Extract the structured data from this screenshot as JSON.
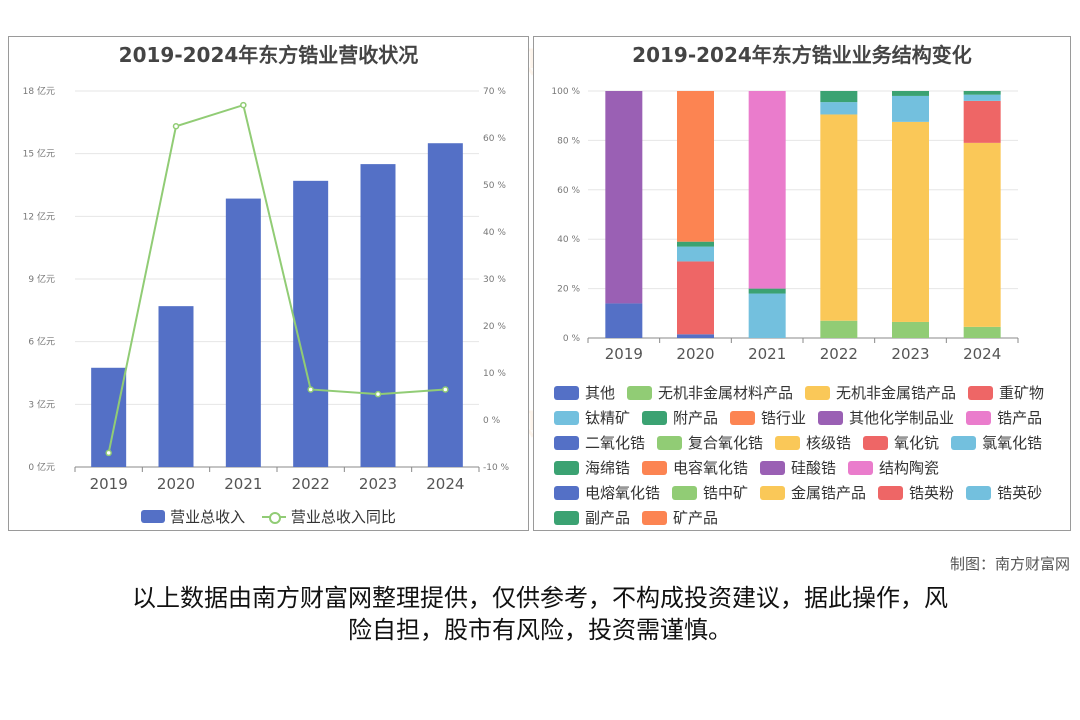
{
  "left_chart_title": "2019-2024年东方锆业营收状况",
  "right_chart_title": "2019-2024年东方锆业业务结构变化",
  "credit": "制图：南方财富网",
  "disclaimer_line1": "以上数据由南方财富网整理提供，仅供参考，不构成投资建议，据此操作，风",
  "disclaimer_line2": "险自担，股市有风险，投资需谨慎。",
  "watermark": "南方财富网",
  "chart_data": [
    {
      "type": "bar",
      "title": "2019-2024年东方锆业营收状况",
      "categories": [
        "2019",
        "2020",
        "2021",
        "2022",
        "2023",
        "2024"
      ],
      "yaxis_left": {
        "ticks": [
          "0 亿元",
          "3 亿元",
          "6 亿元",
          "9 亿元",
          "12 亿元",
          "15 亿元",
          "18 亿元"
        ],
        "range": [
          0,
          18
        ]
      },
      "yaxis_right": {
        "ticks": [
          "-10 %",
          "0 %",
          "10 %",
          "20 %",
          "30 %",
          "40 %",
          "50 %",
          "60 %",
          "70 %"
        ],
        "range": [
          -10,
          70
        ]
      },
      "series": [
        {
          "name": "营业总收入",
          "type": "bar",
          "color": "#5470c6",
          "values": [
            4.75,
            7.7,
            12.85,
            13.7,
            14.5,
            15.5
          ]
        },
        {
          "name": "营业总收入同比",
          "type": "line",
          "color": "#91cc75",
          "values": [
            -7,
            62.5,
            67,
            6.5,
            5.5,
            6.5
          ]
        }
      ],
      "legend_position": "bottom"
    },
    {
      "type": "bar",
      "stacked": true,
      "title": "2019-2024年东方锆业业务结构变化",
      "categories": [
        "2019",
        "2020",
        "2021",
        "2022",
        "2023",
        "2024"
      ],
      "yaxis": {
        "ticks": [
          "0 %",
          "20 %",
          "40 %",
          "60 %",
          "80 %",
          "100 %"
        ],
        "range": [
          0,
          100
        ]
      },
      "legend": [
        {
          "name": "其他",
          "color": "#5470c6"
        },
        {
          "name": "无机非金属材料产品",
          "color": "#91cc75"
        },
        {
          "name": "无机非金属锆产品",
          "color": "#fac858"
        },
        {
          "name": "重矿物",
          "color": "#ee6666"
        },
        {
          "name": "钛精矿",
          "color": "#73c0de"
        },
        {
          "name": "附产品",
          "color": "#3ba272"
        },
        {
          "name": "锆行业",
          "color": "#fc8452"
        },
        {
          "name": "其他化学制品业",
          "color": "#9a60b4"
        },
        {
          "name": "锆产品",
          "color": "#ea7ccc"
        },
        {
          "name": "二氧化锆",
          "color": "#5470c6"
        },
        {
          "name": "复合氧化锆",
          "color": "#91cc75"
        },
        {
          "name": "核级锆",
          "color": "#fac858"
        },
        {
          "name": "氧化钪",
          "color": "#ee6666"
        },
        {
          "name": "氯氧化锆",
          "color": "#73c0de"
        },
        {
          "name": "海绵锆",
          "color": "#3ba272"
        },
        {
          "name": "电容氧化锆",
          "color": "#fc8452"
        },
        {
          "name": "硅酸锆",
          "color": "#9a60b4"
        },
        {
          "name": "结构陶瓷",
          "color": "#ea7ccc"
        },
        {
          "name": "电熔氧化锆",
          "color": "#5470c6"
        },
        {
          "name": "锆中矿",
          "color": "#91cc75"
        },
        {
          "name": "金属锆产品",
          "color": "#fac858"
        },
        {
          "name": "锆英粉",
          "color": "#ee6666"
        },
        {
          "name": "锆英砂",
          "color": "#73c0de"
        },
        {
          "name": "副产品",
          "color": "#3ba272"
        },
        {
          "name": "矿产品",
          "color": "#fc8452"
        }
      ],
      "stacks": [
        [
          {
            "name": "其他",
            "value": 14,
            "color": "#5470c6"
          },
          {
            "name": "其他化学制品业",
            "value": 86,
            "color": "#9a60b4"
          }
        ],
        [
          {
            "name": "二氧化锆",
            "value": 1.5,
            "color": "#5470c6"
          },
          {
            "name": "重矿物",
            "value": 29.5,
            "color": "#ee6666"
          },
          {
            "name": "钛精矿",
            "value": 6,
            "color": "#73c0de"
          },
          {
            "name": "附产品",
            "value": 2,
            "color": "#3ba272"
          },
          {
            "name": "锆行业",
            "value": 61,
            "color": "#fc8452"
          }
        ],
        [
          {
            "name": "钛精矿",
            "value": 18,
            "color": "#73c0de"
          },
          {
            "name": "附产品",
            "value": 2,
            "color": "#3ba272"
          },
          {
            "name": "锆产品",
            "value": 80,
            "color": "#ea7ccc"
          }
        ],
        [
          {
            "name": "无机非金属材料产品",
            "value": 7,
            "color": "#91cc75"
          },
          {
            "name": "无机非金属锆产品",
            "value": 83.5,
            "color": "#fac858"
          },
          {
            "name": "钛精矿",
            "value": 5,
            "color": "#73c0de"
          },
          {
            "name": "附产品",
            "value": 4.5,
            "color": "#3ba272"
          }
        ],
        [
          {
            "name": "无机非金属材料产品",
            "value": 6.5,
            "color": "#91cc75"
          },
          {
            "name": "无机非金属锆产品",
            "value": 81,
            "color": "#fac858"
          },
          {
            "name": "钛精矿",
            "value": 10.5,
            "color": "#73c0de"
          },
          {
            "name": "附产品",
            "value": 2,
            "color": "#3ba272"
          }
        ],
        [
          {
            "name": "无机非金属材料产品",
            "value": 4.5,
            "color": "#91cc75"
          },
          {
            "name": "无机非金属锆产品",
            "value": 74.5,
            "color": "#fac858"
          },
          {
            "name": "重矿物",
            "value": 17,
            "color": "#ee6666"
          },
          {
            "name": "钛精矿",
            "value": 2.5,
            "color": "#73c0de"
          },
          {
            "name": "附产品",
            "value": 1.5,
            "color": "#3ba272"
          }
        ]
      ]
    }
  ]
}
